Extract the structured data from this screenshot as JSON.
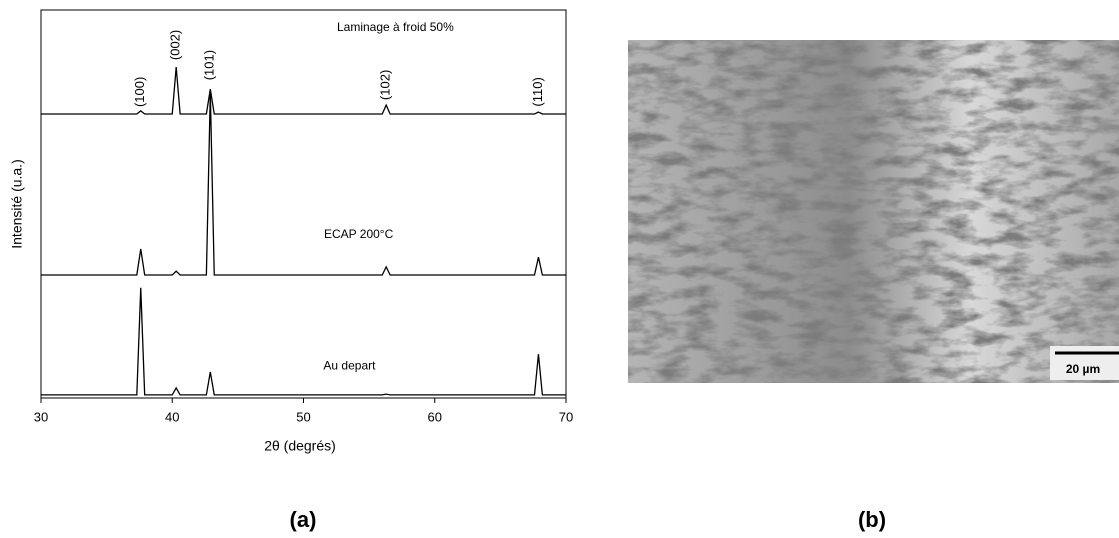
{
  "chart_data": {
    "type": "line",
    "xlabel": "2θ (degrés)",
    "ylabel": "Intensité (u.a.)",
    "x": [
      30,
      37.3,
      37.6,
      37.9,
      40,
      40.3,
      40.6,
      42.6,
      42.9,
      43.2,
      56,
      56.3,
      56.6,
      67.6,
      67.9,
      68.2,
      70
    ],
    "series": [
      {
        "name": "Au depart",
        "color": "#000000",
        "label_x": 53.5,
        "label_y": 8.2,
        "values": [
          0.8,
          0.8,
          28.4,
          0.8,
          0.8,
          2.6,
          0.8,
          0.8,
          6.7,
          0.8,
          0.8,
          1,
          0.8,
          0.8,
          11.3,
          0.8,
          0.8
        ]
      },
      {
        "name": "ECAP 200°C",
        "color": "#000000",
        "label_x": 54.2,
        "label_y": 42,
        "values": [
          31.7,
          31.7,
          38.4,
          31.7,
          31.7,
          32.7,
          31.7,
          31.7,
          78.6,
          31.7,
          31.7,
          33.8,
          31.7,
          31.7,
          36.3,
          31.7,
          31.7
        ]
      },
      {
        "name": "Laminage à froid 50%",
        "color": "#000000",
        "label_x": 57,
        "label_y": 95.4,
        "values": [
          73.2,
          73.2,
          74,
          73.2,
          73.2,
          85.3,
          73.2,
          73.2,
          79.6,
          73.2,
          73.2,
          75.5,
          73.2,
          73.2,
          73.7,
          73.2,
          73.2
        ]
      }
    ],
    "peak_labels": [
      {
        "text": "(100)",
        "x": 37.6,
        "y": 78.9
      },
      {
        "text": "(002)",
        "x": 40.3,
        "y": 91
      },
      {
        "text": "(101)",
        "x": 42.9,
        "y": 85.8
      },
      {
        "text": "(102)",
        "x": 56.3,
        "y": 80.7
      },
      {
        "text": "(110)",
        "x": 67.9,
        "y": 78.9
      }
    ],
    "xlim": [
      30,
      70
    ],
    "xticks": [
      30,
      40,
      50,
      60,
      70
    ],
    "ylim": [
      0,
      100
    ],
    "grid": false
  },
  "panel_labels": [
    "(a)",
    "(b)"
  ],
  "micrograph": {
    "scale_bar": "20 µm"
  }
}
